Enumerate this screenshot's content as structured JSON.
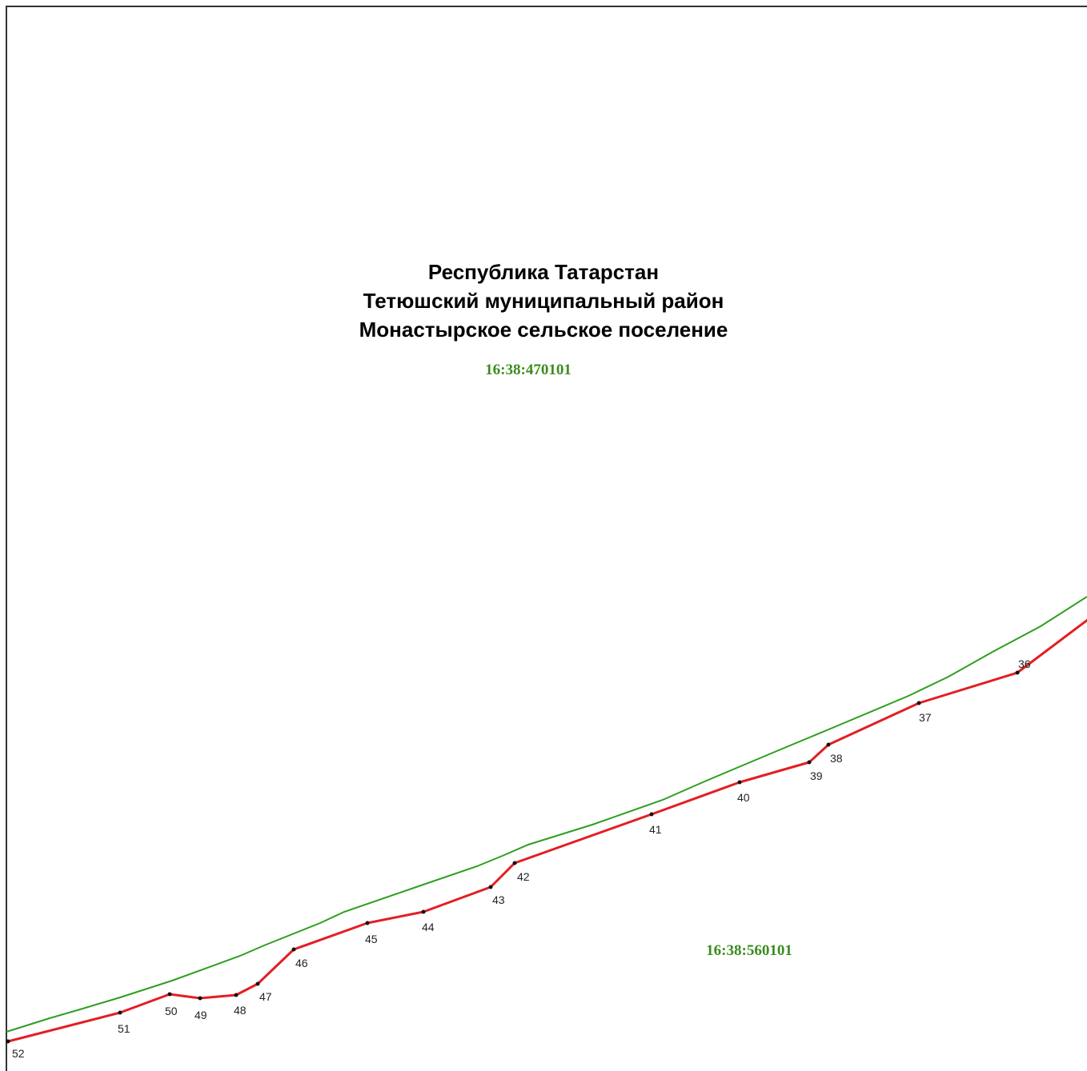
{
  "title_lines": [
    "Республика Татарстан",
    "Тетюшский муниципальный район",
    "Монастырское сельское поселение"
  ],
  "cadastral_quarters": {
    "top": "16:38:470101",
    "bottom": "16:38:560101"
  },
  "colors": {
    "frame": "#333333",
    "boundary_line": "#e31e24",
    "adjacent_line": "#2e9e1f",
    "quarter_text": "#3c8c1e",
    "point": "#111111"
  },
  "boundary_points": [
    {
      "label": "36"
    },
    {
      "label": "37"
    },
    {
      "label": "38"
    },
    {
      "label": "39"
    },
    {
      "label": "40"
    },
    {
      "label": "41"
    },
    {
      "label": "42"
    },
    {
      "label": "43"
    },
    {
      "label": "44"
    },
    {
      "label": "45"
    },
    {
      "label": "46"
    },
    {
      "label": "47"
    },
    {
      "label": "48"
    },
    {
      "label": "49"
    },
    {
      "label": "50"
    },
    {
      "label": "51"
    },
    {
      "label": "52"
    }
  ]
}
